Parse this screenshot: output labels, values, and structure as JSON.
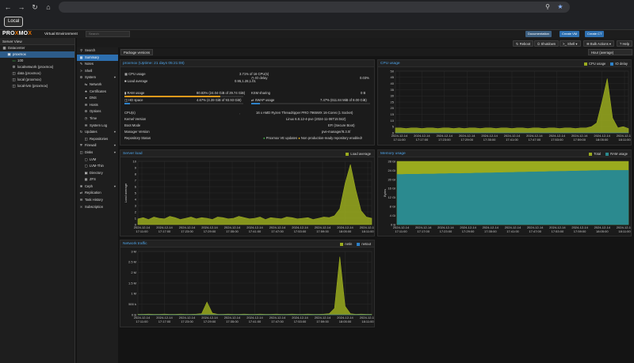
{
  "browser": {
    "bookmark": "Local"
  },
  "header": {
    "logo_a": "PRO",
    "logo_x": "X",
    "logo_b": "MO",
    "logo_x2": "X",
    "subtitle": "Virtual Environment",
    "search_placeholder": "Search",
    "btn_docs": "Documentation",
    "btn_create_vm": "Create VM",
    "btn_create_ct": "Create CT"
  },
  "tree": {
    "title": "Server View",
    "items": [
      {
        "label": "Datacenter",
        "icon": "server-icon",
        "indent": 0
      },
      {
        "label": "proxmox",
        "icon": "node-icon",
        "indent": 1,
        "selected": true
      },
      {
        "label": "100",
        "icon": "vm-icon",
        "indent": 2
      },
      {
        "label": "localnetwork (proxmox)",
        "icon": "network-icon",
        "indent": 2
      },
      {
        "label": "data (proxmox)",
        "icon": "storage-icon",
        "indent": 2
      },
      {
        "label": "local (proxmox)",
        "icon": "storage-icon",
        "indent": 2
      },
      {
        "label": "local-lvm (proxmox)",
        "icon": "storage-icon",
        "indent": 2
      }
    ]
  },
  "toolbar": {
    "reboot": "Reboot",
    "shutdown": "Shutdown",
    "shell": "Shell",
    "bulk": "Bulk Actions",
    "help": "Help"
  },
  "menu": {
    "items": [
      {
        "label": "Search",
        "icon": "search-icon",
        "sub": false
      },
      {
        "label": "Summary",
        "icon": "summary-icon",
        "sub": false,
        "selected": true
      },
      {
        "label": "Notes",
        "icon": "notes-icon",
        "sub": false
      },
      {
        "label": "Shell",
        "icon": "terminal-icon",
        "sub": false
      },
      {
        "label": "System",
        "icon": "gear-icon",
        "sub": false,
        "expand": true
      },
      {
        "label": "Network",
        "icon": "network-icon",
        "sub": true
      },
      {
        "label": "Certificates",
        "icon": "certificate-icon",
        "sub": true
      },
      {
        "label": "DNS",
        "icon": "globe-icon",
        "sub": true
      },
      {
        "label": "Hosts",
        "icon": "hosts-icon",
        "sub": true
      },
      {
        "label": "Options",
        "icon": "gear-icon",
        "sub": true
      },
      {
        "label": "Time",
        "icon": "clock-icon",
        "sub": true
      },
      {
        "label": "System Log",
        "icon": "list-icon",
        "sub": true
      },
      {
        "label": "Updates",
        "icon": "refresh-icon",
        "sub": false,
        "expand": true
      },
      {
        "label": "Repositories",
        "icon": "repository-icon",
        "sub": true
      },
      {
        "label": "Firewall",
        "icon": "shield-icon",
        "sub": false,
        "expand": true
      },
      {
        "label": "Disks",
        "icon": "disk-icon",
        "sub": false,
        "expand": true
      },
      {
        "label": "LVM",
        "icon": "square-icon",
        "sub": true
      },
      {
        "label": "LVM-Thin",
        "icon": "square-icon",
        "sub": true
      },
      {
        "label": "Directory",
        "icon": "folder-icon",
        "sub": true
      },
      {
        "label": "ZFS",
        "icon": "grid-icon",
        "sub": true
      },
      {
        "label": "Ceph",
        "icon": "ceph-icon",
        "sub": false,
        "expand": true
      },
      {
        "label": "Replication",
        "icon": "retweet-icon",
        "sub": false
      },
      {
        "label": "Task History",
        "icon": "list-icon",
        "sub": false
      },
      {
        "label": "Subscription",
        "icon": "support-icon",
        "sub": false
      }
    ]
  },
  "subbar": {
    "package_versions": "Package versions",
    "timeframe": "Hour (average)"
  },
  "summary": {
    "title": "proxmox (Uptime: 21 days 05:21:08)",
    "cpu_label": "CPU usage",
    "cpu_value": "3.71% of 16 CPU(s)",
    "io_label": "IO delay",
    "io_value": "0.03%",
    "load_label": "Load average",
    "load_value": "0.95,1.28,1.01",
    "ram_label": "RAM usage",
    "ram_value": "80.83% (24.04 GiB of 29.74 GiB)",
    "ram_frac": 0.8083,
    "ksm_label": "KSM sharing",
    "ksm_value": "0 B",
    "hd_label": "HD space",
    "hd_value": "4.67% (4.39 GiB of 93.93 GiB)",
    "hd_frac": 0.0467,
    "swap_label": "SWAP usage",
    "swap_value": "7.47% (611.84 MiB of 8.00 GiB)",
    "swap_frac": 0.0747,
    "cpus_label": "CPU(s)",
    "cpus_value": "16 x AMD Ryzen Threadripper PRO 7965WX 16-Cores (1 Socket)",
    "kernel_label": "Kernel Version",
    "kernel_value": "Linux 6.8.12-4-pve (2024-11-06T15:04Z)",
    "boot_label": "Boot Mode",
    "boot_value": "EFI (Secure Boot)",
    "manager_label": "Manager Version",
    "manager_value": "pve-manager/8.3.0/",
    "repo_label": "Repository Status",
    "repo_ok": "Proxmox VE updates",
    "repo_warn": "Non production-ready repository enabled!"
  },
  "x_ticks": [
    [
      "2024-12-14",
      "17:11:00"
    ],
    [
      "2024-12-14",
      "17:17:00"
    ],
    [
      "2024-12-14",
      "17:23:00"
    ],
    [
      "2024-12-14",
      "17:29:00"
    ],
    [
      "2024-12-14",
      "17:35:00"
    ],
    [
      "2024-12-14",
      "17:41:00"
    ],
    [
      "2024-12-14",
      "17:47:00"
    ],
    [
      "2024-12-14",
      "17:53:00"
    ],
    [
      "2024-12-14",
      "17:59:00"
    ],
    [
      "2024-12-14",
      "18:05:00"
    ],
    [
      "2024-12-14",
      "18:11:00"
    ]
  ],
  "charts": {
    "cpu": {
      "title": "CPU usage",
      "legend": [
        "CPU usage",
        "IO delay"
      ],
      "colors": [
        "#9aab1e",
        "#2e82c9"
      ],
      "y_ticks": [
        "50",
        "45",
        "40",
        "35",
        "30",
        "25",
        "20",
        "15",
        "10",
        "5",
        "0"
      ]
    },
    "load": {
      "title": "Server load",
      "legend": [
        "Load average"
      ],
      "colors": [
        "#9aab1e"
      ],
      "ylabel": "Load average",
      "y_ticks": [
        "10",
        "9",
        "8",
        "7",
        "6",
        "5",
        "4",
        "3",
        "2",
        "1",
        "0"
      ]
    },
    "memory": {
      "title": "Memory usage",
      "legend": [
        "Total",
        "RAM usage"
      ],
      "colors": [
        "#9aab1e",
        "#2b8a8f"
      ],
      "ylabel": "Bytes",
      "y_ticks": [
        "28 Gi",
        "24 Gi",
        "20 Gi",
        "16 Gi",
        "12 Gi",
        "8 Gi",
        "4 Gi",
        "0 B"
      ]
    },
    "network": {
      "title": "Network traffic",
      "legend": [
        "netin",
        "netout"
      ],
      "colors": [
        "#9aab1e",
        "#2e82c9"
      ],
      "y_ticks": [
        "3 M",
        "2.5 M",
        "2 M",
        "1.5 M",
        "1 M",
        "500 k",
        "0 B"
      ]
    }
  },
  "chart_data": [
    {
      "type": "area",
      "title": "CPU usage",
      "ylim": [
        0,
        50
      ],
      "series": [
        {
          "name": "CPU usage",
          "values": [
            4,
            4,
            3.5,
            4,
            4,
            3.5,
            4,
            4,
            3.5,
            4,
            4,
            3.5,
            4,
            3.5,
            4,
            4,
            3.5,
            4,
            4,
            3.5,
            4,
            4,
            3.5,
            4,
            4,
            3.5,
            4,
            4,
            3.5,
            4,
            4,
            3.5,
            4,
            4,
            3.5,
            4,
            4,
            5,
            8,
            25,
            44,
            12,
            4,
            5,
            3.5
          ]
        },
        {
          "name": "IO delay",
          "values": [
            0,
            0,
            0,
            0,
            0,
            0,
            0,
            0,
            0,
            0,
            0,
            0,
            0,
            0,
            0,
            0,
            0,
            0,
            0,
            0,
            0,
            0,
            0,
            0,
            0,
            0,
            0,
            0,
            0,
            0,
            0,
            0,
            0,
            0,
            0,
            0,
            0,
            0,
            0,
            0,
            0,
            0,
            0,
            0,
            0
          ]
        }
      ]
    },
    {
      "type": "area",
      "title": "Server load",
      "ylim": [
        0,
        10
      ],
      "series": [
        {
          "name": "Load average",
          "values": [
            0.9,
            1.1,
            0.8,
            1.2,
            1.0,
            0.9,
            1.3,
            1.1,
            0.8,
            1.0,
            1.2,
            0.9,
            1.1,
            1.0,
            0.8,
            1.2,
            1.1,
            0.9,
            1.0,
            1.3,
            1.1,
            0.9,
            1.0,
            1.2,
            0.8,
            1.1,
            1.0,
            0.9,
            1.2,
            1.1,
            0.9,
            1.0,
            1.1,
            0.8,
            1.0,
            1.2,
            1.1,
            1.4,
            2.5,
            6.5,
            9.5,
            5.5,
            2.2,
            1.2,
            1.0
          ]
        }
      ]
    },
    {
      "type": "area",
      "title": "Memory usage",
      "ylim": [
        0,
        28
      ],
      "series": [
        {
          "name": "Total",
          "values": [
            29.74,
            29.74,
            29.74,
            29.74,
            29.74,
            29.74,
            29.74,
            29.74,
            29.74,
            29.74,
            29.74,
            29.74,
            29.74,
            29.74,
            29.74,
            29.74,
            29.74,
            29.74,
            29.74,
            29.74,
            29.74,
            29.74,
            29.74,
            29.74,
            29.74,
            29.74,
            29.74,
            29.74,
            29.74,
            29.74,
            29.74,
            29.74,
            29.74,
            29.74,
            29.74,
            29.74,
            29.74,
            29.74,
            29.74,
            29.74,
            29.74,
            29.74,
            29.74,
            29.74,
            29.74
          ]
        },
        {
          "name": "RAM usage",
          "values": [
            22.2,
            22.2,
            22.3,
            22.3,
            22.3,
            22.4,
            22.4,
            22.4,
            22.5,
            22.5,
            22.6,
            22.6,
            22.6,
            22.7,
            22.7,
            22.8,
            22.8,
            22.9,
            22.9,
            23.0,
            23.0,
            23.1,
            23.1,
            23.2,
            23.2,
            23.3,
            23.3,
            23.4,
            23.4,
            23.5,
            23.5,
            23.6,
            23.6,
            23.7,
            23.7,
            23.8,
            23.8,
            23.9,
            23.9,
            24.0,
            24.0,
            24.0,
            24.0,
            24.0,
            24.0
          ]
        }
      ]
    },
    {
      "type": "area",
      "title": "Network traffic",
      "ylim": [
        0,
        3
      ],
      "series": [
        {
          "name": "netin",
          "values": [
            0.02,
            0.02,
            0.03,
            0.02,
            0.02,
            0.03,
            0.02,
            0.02,
            0.03,
            0.02,
            0.02,
            0.03,
            0.05,
            0.6,
            0.08,
            0.02,
            0.02,
            0.03,
            0.02,
            0.02,
            0.03,
            0.02,
            0.02,
            0.03,
            0.02,
            0.02,
            0.03,
            0.02,
            0.02,
            0.03,
            0.02,
            0.02,
            0.03,
            0.02,
            0.02,
            0.03,
            0.05,
            0.3,
            2.75,
            0.4,
            0.05,
            0.02,
            0.03,
            0.02,
            0.02
          ]
        },
        {
          "name": "netout",
          "values": [
            0,
            0,
            0,
            0,
            0,
            0,
            0,
            0,
            0,
            0,
            0,
            0,
            0,
            0,
            0,
            0,
            0,
            0,
            0,
            0,
            0,
            0,
            0,
            0,
            0,
            0,
            0,
            0,
            0,
            0,
            0,
            0,
            0,
            0,
            0,
            0,
            0,
            0,
            0,
            0,
            0,
            0,
            0,
            0,
            0
          ]
        }
      ]
    }
  ]
}
